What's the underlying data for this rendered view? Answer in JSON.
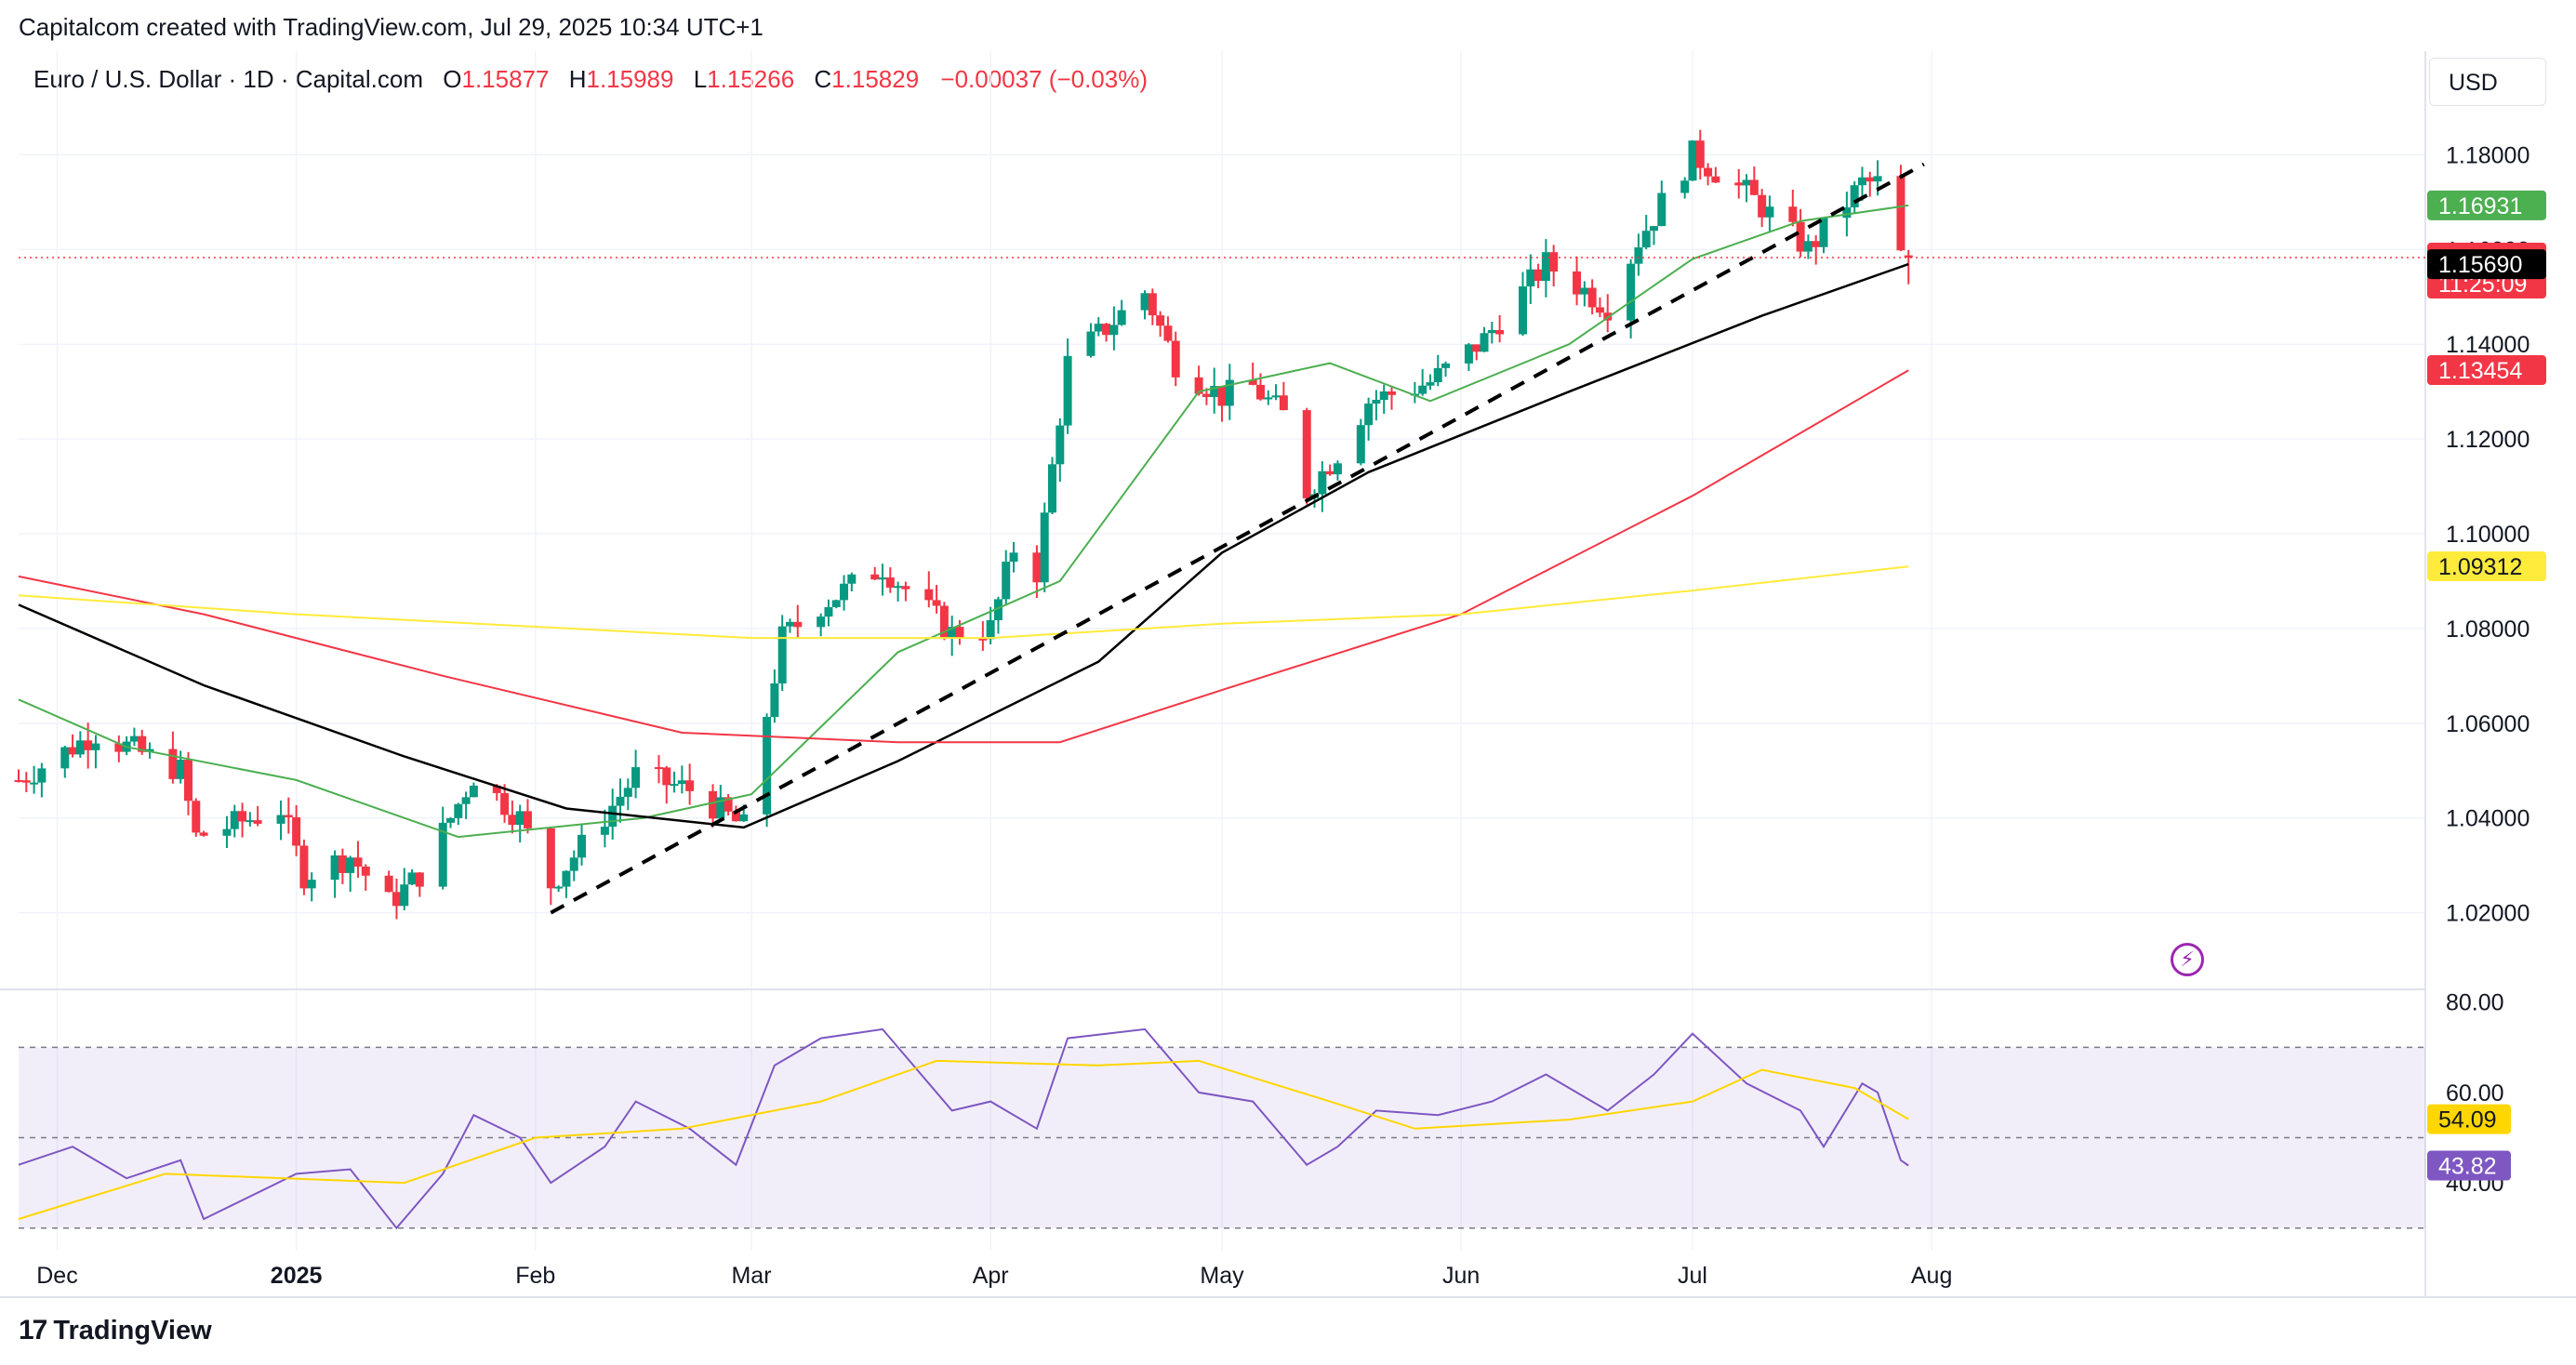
{
  "header": {
    "note": "Capitalcom created with TradingView.com, Jul 29, 2025 10:34 UTC+1",
    "symbol": "Euro / U.S. Dollar · 1D · Capital.com",
    "o_label": "O",
    "o_value": "1.15877",
    "h_label": "H",
    "h_value": "1.15989",
    "l_label": "L",
    "l_value": "1.15266",
    "c_label": "C",
    "c_value": "1.15829",
    "change": "−0.00037 (−0.03%)"
  },
  "currency": "USD",
  "footer": {
    "brand": "TradingView",
    "brand_mark": "17"
  },
  "icons": {
    "logo": "tradingview-logo-icon",
    "lightning": "lightning-icon"
  },
  "colors": {
    "up": "#089981",
    "down": "#f23645",
    "ma20": "#4caf50",
    "ma50": "#000000",
    "ma100": "#f23645",
    "ma200": "#ffeb3b",
    "rsi": "#7e57c2",
    "rsi_ma": "#ffd600",
    "trendline": "#000000"
  },
  "chart_data": [
    {
      "type": "candlestick",
      "title": "Euro / U.S. Dollar · 1D · Capital.com",
      "ylim": [
        1.005,
        1.195
      ],
      "y_ticks": [
        1.02,
        1.04,
        1.06,
        1.08,
        1.1,
        1.12,
        1.14,
        1.16,
        1.18
      ],
      "y_tick_labels": [
        "1.02000",
        "1.04000",
        "1.06000",
        "1.08000",
        "1.10000",
        "1.12000",
        "1.14000",
        "1.16000",
        "1.18000"
      ],
      "x_labels": [
        "Dec",
        "2025",
        "Feb",
        "Mar",
        "Apr",
        "May",
        "Jun",
        "Jul",
        "Aug"
      ],
      "x_label_dates": [
        "2024-12-01",
        "2025-01-01",
        "2025-02-01",
        "2025-03-01",
        "2025-04-01",
        "2025-05-01",
        "2025-06-01",
        "2025-07-01",
        "2025-08-01"
      ],
      "x_range": [
        "2024-11-26",
        "2025-10-04"
      ],
      "price_anchors": [
        [
          "2024-11-26",
          1.048
        ],
        [
          "2024-12-06",
          1.058
        ],
        [
          "2024-12-17",
          1.05
        ],
        [
          "2024-12-19",
          1.036
        ],
        [
          "2024-12-30",
          1.042
        ],
        [
          "2025-01-02",
          1.028
        ],
        [
          "2025-01-08",
          1.032
        ],
        [
          "2025-01-13",
          1.022
        ],
        [
          "2025-01-17",
          1.028
        ],
        [
          "2025-01-24",
          1.049
        ],
        [
          "2025-01-30",
          1.04
        ],
        [
          "2025-02-03",
          1.026
        ],
        [
          "2025-02-07",
          1.034
        ],
        [
          "2025-02-14",
          1.049
        ],
        [
          "2025-02-21",
          1.046
        ],
        [
          "2025-02-28",
          1.038
        ],
        [
          "2025-03-05",
          1.078
        ],
        [
          "2025-03-10",
          1.085
        ],
        [
          "2025-03-18",
          1.093
        ],
        [
          "2025-03-27",
          1.079
        ],
        [
          "2025-04-01",
          1.08
        ],
        [
          "2025-04-04",
          1.097
        ],
        [
          "2025-04-07",
          1.092
        ],
        [
          "2025-04-11",
          1.136
        ],
        [
          "2025-04-21",
          1.151
        ],
        [
          "2025-04-25",
          1.136
        ],
        [
          "2025-05-01",
          1.129
        ],
        [
          "2025-05-05",
          1.131
        ],
        [
          "2025-05-09",
          1.125
        ],
        [
          "2025-05-12",
          1.109
        ],
        [
          "2025-05-16",
          1.117
        ],
        [
          "2025-05-20",
          1.128
        ],
        [
          "2025-05-28",
          1.132
        ],
        [
          "2025-06-04",
          1.141
        ],
        [
          "2025-06-12",
          1.157
        ],
        [
          "2025-06-20",
          1.148
        ],
        [
          "2025-06-24",
          1.162
        ],
        [
          "2025-07-01",
          1.18
        ],
        [
          "2025-07-08",
          1.172
        ],
        [
          "2025-07-16",
          1.16
        ],
        [
          "2025-07-23",
          1.174
        ],
        [
          "2025-07-25",
          1.174
        ],
        [
          "2025-07-28",
          1.1587
        ],
        [
          "2025-07-29",
          1.15829
        ]
      ],
      "last_candle": {
        "date": "2025-07-29",
        "open": 1.15877,
        "high": 1.15989,
        "low": 1.15266,
        "close": 1.15829
      },
      "trendline": [
        [
          "2025-02-03",
          1.02
        ],
        [
          "2025-07-31",
          1.178
        ]
      ],
      "moving_averages": [
        {
          "color_key": "ma20",
          "points": [
            [
              "2024-11-26",
              1.065
            ],
            [
              "2024-12-10",
              1.055
            ],
            [
              "2025-01-01",
              1.048
            ],
            [
              "2025-01-22",
              1.036
            ],
            [
              "2025-02-15",
              1.04
            ],
            [
              "2025-03-01",
              1.045
            ],
            [
              "2025-03-20",
              1.075
            ],
            [
              "2025-04-10",
              1.09
            ],
            [
              "2025-04-28",
              1.13
            ],
            [
              "2025-05-15",
              1.136
            ],
            [
              "2025-05-28",
              1.128
            ],
            [
              "2025-06-15",
              1.14
            ],
            [
              "2025-07-01",
              1.158
            ],
            [
              "2025-07-15",
              1.166
            ],
            [
              "2025-07-29",
              1.1693
            ]
          ]
        },
        {
          "color_key": "ma50",
          "points": [
            [
              "2024-11-26",
              1.085
            ],
            [
              "2024-12-20",
              1.068
            ],
            [
              "2025-01-15",
              1.053
            ],
            [
              "2025-02-05",
              1.042
            ],
            [
              "2025-02-28",
              1.038
            ],
            [
              "2025-03-20",
              1.052
            ],
            [
              "2025-04-15",
              1.073
            ],
            [
              "2025-05-01",
              1.096
            ],
            [
              "2025-05-20",
              1.113
            ],
            [
              "2025-06-15",
              1.13
            ],
            [
              "2025-07-10",
              1.146
            ],
            [
              "2025-07-29",
              1.1569
            ]
          ]
        },
        {
          "color_key": "ma100",
          "points": [
            [
              "2024-11-26",
              1.091
            ],
            [
              "2024-12-20",
              1.083
            ],
            [
              "2025-01-20",
              1.07
            ],
            [
              "2025-02-20",
              1.058
            ],
            [
              "2025-03-20",
              1.056
            ],
            [
              "2025-04-10",
              1.056
            ],
            [
              "2025-05-01",
              1.067
            ],
            [
              "2025-06-01",
              1.083
            ],
            [
              "2025-07-01",
              1.108
            ],
            [
              "2025-07-29",
              1.1345
            ]
          ]
        },
        {
          "color_key": "ma200",
          "points": [
            [
              "2024-11-26",
              1.087
            ],
            [
              "2025-01-01",
              1.083
            ],
            [
              "2025-03-01",
              1.078
            ],
            [
              "2025-04-01",
              1.078
            ],
            [
              "2025-05-01",
              1.081
            ],
            [
              "2025-06-01",
              1.083
            ],
            [
              "2025-07-01",
              1.088
            ],
            [
              "2025-07-29",
              1.0931
            ]
          ]
        }
      ],
      "price_badges": [
        {
          "text": "1.16931",
          "bg": "#4caf50",
          "fg": "#ffffff",
          "value": 1.16931
        },
        {
          "text": "1.15829",
          "text2": "11:25:09",
          "bg": "#f23645",
          "fg": "#ffffff",
          "value": 1.15829
        },
        {
          "text": "1.15690",
          "bg": "#000000",
          "fg": "#ffffff",
          "value": 1.1569
        },
        {
          "text": "1.13454",
          "bg": "#f23645",
          "fg": "#ffffff",
          "value": 1.13454
        },
        {
          "text": "1.09312",
          "bg": "#ffeb3b",
          "fg": "#131722",
          "value": 1.09312
        }
      ]
    },
    {
      "type": "line",
      "title": "",
      "ylim": [
        25,
        82
      ],
      "y_ticks": [
        40,
        60,
        80
      ],
      "y_tick_labels": [
        "40.00",
        "60.00",
        "80.00"
      ],
      "levels": [
        30,
        50,
        70
      ],
      "series": [
        {
          "color_key": "rsi",
          "points": [
            [
              "2024-11-26",
              44
            ],
            [
              "2024-12-03",
              48
            ],
            [
              "2024-12-10",
              41
            ],
            [
              "2024-12-17",
              45
            ],
            [
              "2024-12-20",
              32
            ],
            [
              "2025-01-01",
              42
            ],
            [
              "2025-01-08",
              43
            ],
            [
              "2025-01-14",
              30
            ],
            [
              "2025-01-20",
              42
            ],
            [
              "2025-01-24",
              55
            ],
            [
              "2025-01-30",
              50
            ],
            [
              "2025-02-03",
              40
            ],
            [
              "2025-02-10",
              48
            ],
            [
              "2025-02-14",
              58
            ],
            [
              "2025-02-21",
              52
            ],
            [
              "2025-02-27",
              44
            ],
            [
              "2025-03-04",
              66
            ],
            [
              "2025-03-10",
              72
            ],
            [
              "2025-03-18",
              74
            ],
            [
              "2025-03-27",
              56
            ],
            [
              "2025-04-01",
              58
            ],
            [
              "2025-04-07",
              52
            ],
            [
              "2025-04-11",
              72
            ],
            [
              "2025-04-21",
              74
            ],
            [
              "2025-04-28",
              60
            ],
            [
              "2025-05-05",
              58
            ],
            [
              "2025-05-12",
              44
            ],
            [
              "2025-05-16",
              48
            ],
            [
              "2025-05-21",
              56
            ],
            [
              "2025-05-29",
              55
            ],
            [
              "2025-06-05",
              58
            ],
            [
              "2025-06-12",
              64
            ],
            [
              "2025-06-20",
              56
            ],
            [
              "2025-06-26",
              64
            ],
            [
              "2025-07-01",
              73
            ],
            [
              "2025-07-08",
              62
            ],
            [
              "2025-07-15",
              56
            ],
            [
              "2025-07-18",
              48
            ],
            [
              "2025-07-23",
              62
            ],
            [
              "2025-07-25",
              60
            ],
            [
              "2025-07-28",
              45
            ],
            [
              "2025-07-29",
              43.82
            ]
          ]
        },
        {
          "color_key": "rsi_ma",
          "points": [
            [
              "2024-11-26",
              32
            ],
            [
              "2024-12-15",
              42
            ],
            [
              "2025-01-15",
              40
            ],
            [
              "2025-02-01",
              50
            ],
            [
              "2025-02-20",
              52
            ],
            [
              "2025-03-10",
              58
            ],
            [
              "2025-03-25",
              67
            ],
            [
              "2025-04-15",
              66
            ],
            [
              "2025-04-28",
              67
            ],
            [
              "2025-05-15",
              58
            ],
            [
              "2025-05-26",
              52
            ],
            [
              "2025-06-15",
              54
            ],
            [
              "2025-07-01",
              58
            ],
            [
              "2025-07-10",
              65
            ],
            [
              "2025-07-22",
              61
            ],
            [
              "2025-07-29",
              54.09
            ]
          ]
        }
      ],
      "value_badges": [
        {
          "text": "54.09",
          "bg": "#ffd600",
          "fg": "#131722",
          "value": 54.09
        },
        {
          "text": "43.82",
          "bg": "#7e57c2",
          "fg": "#ffffff",
          "value": 43.82
        }
      ]
    }
  ]
}
